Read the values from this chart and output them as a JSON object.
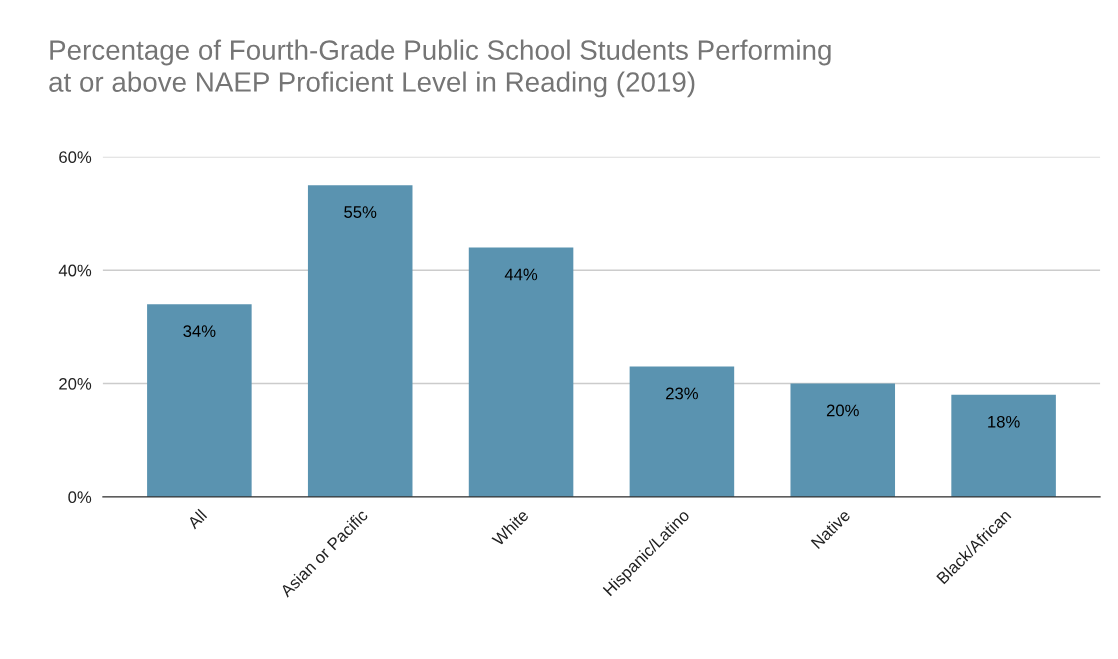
{
  "chart_data": {
    "type": "bar",
    "title": "Percentage of Fourth-Grade Public School Students Performing\nat or above NAEP Proficient Level in Reading (2019)",
    "categories": [
      "All",
      "Asian or Pacific",
      "White",
      "Hispanic/Latino",
      "Native",
      "Black/African"
    ],
    "values": [
      34,
      55,
      44,
      23,
      20,
      18
    ],
    "value_labels": [
      "34%",
      "55%",
      "44%",
      "23%",
      "20%",
      "18%"
    ],
    "color": "#5a93b0",
    "ylim": [
      0,
      60
    ],
    "yticks": [
      {
        "value": 0,
        "label": "0%"
      },
      {
        "value": 20,
        "label": "20%"
      },
      {
        "value": 40,
        "label": "40%"
      },
      {
        "value": 60,
        "label": "60%"
      }
    ],
    "grid": "y",
    "legend": false
  }
}
